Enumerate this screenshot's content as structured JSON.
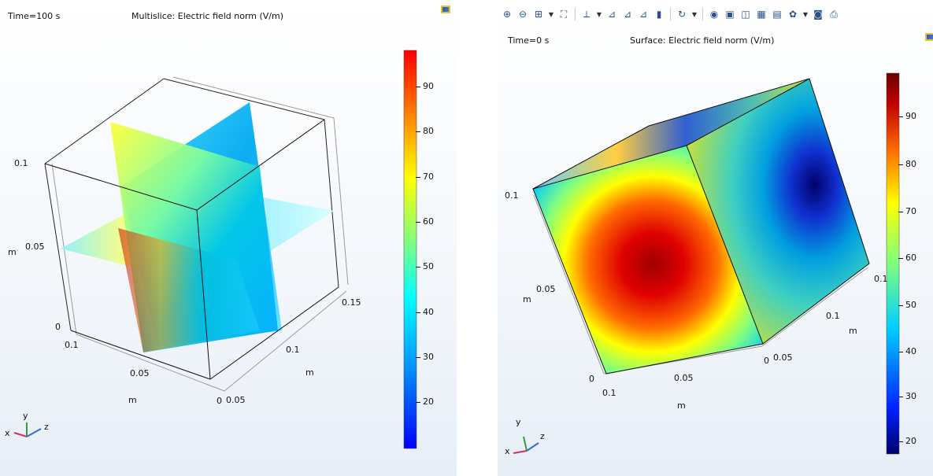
{
  "left": {
    "time_label": "Time=100 s",
    "plot_title": "Multislice: Electric field norm (V/m)",
    "colorbar_ticks": [
      "90",
      "80",
      "70",
      "60",
      "50",
      "40",
      "30",
      "20"
    ],
    "axis_ticks": {
      "z_top": "0.1",
      "z_mid": "0.05",
      "z_bottom": "0",
      "x_a": "0.1",
      "x_b": "0.05",
      "y_a": "0.15",
      "y_b": "0.1",
      "y_c": "0.05",
      "y_zero": "0"
    },
    "unit_labels": {
      "z": "m",
      "x": "m",
      "y": "m"
    },
    "triad": {
      "x": "x",
      "y": "y",
      "z": "z"
    }
  },
  "right": {
    "time_label": "Time=0 s",
    "plot_title": "Surface: Electric field norm (V/m)",
    "colorbar_ticks": [
      "90",
      "80",
      "70",
      "60",
      "50",
      "40",
      "30",
      "20"
    ],
    "axis_ticks": {
      "z_top": "0.1",
      "z_mid": "0.05",
      "z_bottom": "0",
      "x_a": "0.1",
      "x_b": "0.05",
      "y_a": "0.1",
      "y_b": "0.1",
      "y_c": "0.05",
      "y_zero": "0"
    },
    "unit_labels": {
      "z": "m",
      "x": "m",
      "y": "m"
    },
    "triad": {
      "x": "x",
      "y": "y",
      "z": "z"
    },
    "toolbar_icons": [
      "zoom-in-icon",
      "zoom-out-icon",
      "zoom-box-icon",
      "zoom-extents-icon",
      "axis-orientation-icon",
      "view-xy-icon",
      "view-yz-icon",
      "view-zx-icon",
      "go-to-default-view-icon",
      "rotate-icon",
      "scene-light-icon",
      "transparency-icon",
      "wireframe-icon",
      "grid-icon",
      "legend-icon",
      "render-settings-icon",
      "camera-icon",
      "print-icon"
    ]
  },
  "colors": {
    "colormap": [
      "#0000ff",
      "#00a0ff",
      "#00ffff",
      "#7fff7f",
      "#ffff00",
      "#ff8000",
      "#ff0000"
    ],
    "colormap_dark": [
      "#00006a",
      "#0022ff",
      "#00cfff",
      "#7fff7f",
      "#ffff00",
      "#ff6a00",
      "#c00000",
      "#6a0000"
    ]
  }
}
